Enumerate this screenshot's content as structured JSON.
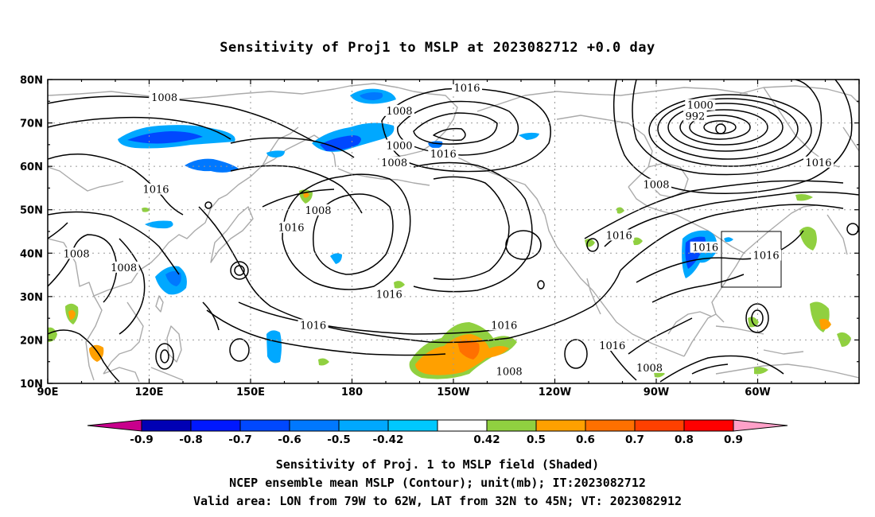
{
  "title": "Sensitivity of Proj1 to MSLP at 2023082712 +0.0 day",
  "axes": {
    "lat_labels": [
      "80N",
      "70N",
      "60N",
      "50N",
      "40N",
      "30N",
      "20N",
      "10N"
    ],
    "lon_labels": [
      "90E",
      "120E",
      "150E",
      "180",
      "150W",
      "120W",
      "90W",
      "60W"
    ],
    "lon_range": [
      90,
      330
    ],
    "lat_range": [
      10,
      80
    ],
    "grid": true
  },
  "colorbar": {
    "labels": [
      "-0.9",
      "-0.8",
      "-0.7",
      "-0.6",
      "-0.5",
      "-0.42",
      "0.42",
      "0.5",
      "0.6",
      "0.7",
      "0.8",
      "0.9"
    ],
    "colors": [
      "#c8008c",
      "#0000b4",
      "#0018ff",
      "#0048ff",
      "#0078ff",
      "#00a8ff",
      "#00c8ff",
      "#ffffff",
      "#90d040",
      "#ffa000",
      "#ff7000",
      "#ff4000",
      "#ff0000",
      "#ffa0c8"
    ]
  },
  "contour_labels": [
    {
      "text": "1016",
      "lon": 214,
      "lat": 78
    },
    {
      "text": "1008",
      "lon": 124.5,
      "lat": 75.8
    },
    {
      "text": "1008",
      "lon": 194,
      "lat": 72.7
    },
    {
      "text": "1000",
      "lon": 283,
      "lat": 74
    },
    {
      "text": "992",
      "lon": 281.5,
      "lat": 71.5
    },
    {
      "text": "1000",
      "lon": 194,
      "lat": 64.7
    },
    {
      "text": "1008",
      "lon": 192.5,
      "lat": 60.8
    },
    {
      "text": "1016",
      "lon": 207,
      "lat": 62.8
    },
    {
      "text": "1016",
      "lon": 318,
      "lat": 60.8
    },
    {
      "text": "1016",
      "lon": 122,
      "lat": 54.6
    },
    {
      "text": "1008",
      "lon": 270,
      "lat": 55.7
    },
    {
      "text": "1008",
      "lon": 170,
      "lat": 49.8
    },
    {
      "text": "1016",
      "lon": 162,
      "lat": 45.8
    },
    {
      "text": "1016",
      "lon": 259,
      "lat": 44
    },
    {
      "text": "1016",
      "lon": 284.5,
      "lat": 41.2
    },
    {
      "text": "1016",
      "lon": 302.5,
      "lat": 39.4
    },
    {
      "text": "1008",
      "lon": 98.5,
      "lat": 39.8
    },
    {
      "text": "1008",
      "lon": 112.5,
      "lat": 36.6
    },
    {
      "text": "1016",
      "lon": 191,
      "lat": 30.4
    },
    {
      "text": "1016",
      "lon": 168.5,
      "lat": 23.3
    },
    {
      "text": "1016",
      "lon": 225,
      "lat": 23.3
    },
    {
      "text": "1016",
      "lon": 257,
      "lat": 18.6
    },
    {
      "text": "1008",
      "lon": 268,
      "lat": 13.5
    },
    {
      "text": "1008",
      "lon": 226.5,
      "lat": 12.7
    }
  ],
  "caption": [
    "Sensitivity of Proj. 1 to MSLP field (Shaded)",
    "NCEP ensemble mean MSLP (Contour); unit(mb); IT:2023082712",
    "Valid area: LON from 79W to 62W, LAT from 32N to 45N; VT: 2023082912"
  ],
  "valid_area": {
    "lon_min": -79,
    "lon_max": -62,
    "lat_min": 32,
    "lat_max": 45
  }
}
